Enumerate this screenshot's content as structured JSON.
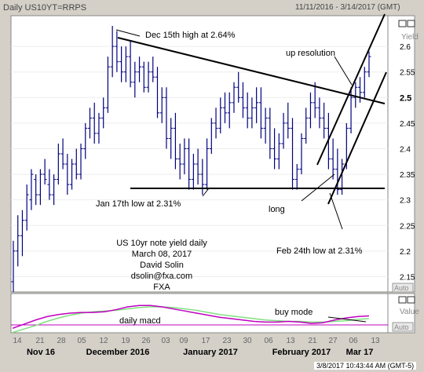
{
  "header": {
    "title": "Daily US10YT=RRPS",
    "range": "11/11/2016 - 3/14/2017 (GMT)",
    "status": "3/8/2017 10:43:44 AM  (GMT-5)"
  },
  "panels": {
    "price_label": "Yield",
    "macd_label": "Value",
    "auto_label": "Auto"
  },
  "colors": {
    "background": "#ffffff",
    "frame": "#d4d0c8",
    "bars": "#000080",
    "macd_line": "#c000c0",
    "signal_line": "#80e080",
    "zero_line": "#c000c0"
  },
  "info_block": [
    "US 10yr note yield daily",
    "March 08, 2017",
    "David Solin",
    "dsolin@fxa.com",
    "FXA"
  ],
  "annotations": [
    {
      "key": "dec15",
      "text": "Dec 15th high at 2.64%"
    },
    {
      "key": "up_res",
      "text": "up resolution"
    },
    {
      "key": "jan17",
      "text": "Jan 17th low at 2.31%"
    },
    {
      "key": "long",
      "text": "long"
    },
    {
      "key": "feb24",
      "text": "Feb 24th low at 2.31%"
    },
    {
      "key": "buy_mode",
      "text": "buy mode"
    },
    {
      "key": "daily_macd",
      "text": "daily macd"
    }
  ],
  "chart_data": {
    "type": "bar",
    "ylabel": "Yield",
    "ylim": [
      2.12,
      2.66
    ],
    "y_ticks": [
      "2.6",
      "2.55",
      "2.5",
      "2.45",
      "2.4",
      "2.35",
      "2.3",
      "2.25",
      "2.2",
      "2.15"
    ],
    "y_tick_values": [
      2.6,
      2.55,
      2.5,
      2.45,
      2.4,
      2.35,
      2.3,
      2.25,
      2.2,
      2.15
    ],
    "highlight_tick": "2.5",
    "x_ticks": [
      "14",
      "21",
      "28",
      "05",
      "12",
      "19",
      "26",
      "03",
      "09",
      "17",
      "23",
      "30",
      "06",
      "13",
      "21",
      "27",
      "06",
      "13"
    ],
    "month_labels": [
      "Nov 16",
      "December 2016",
      "January 2017",
      "February 2017",
      "Mar 17"
    ],
    "ohlc": [
      [
        2.14,
        2.22,
        2.12,
        2.2
      ],
      [
        2.2,
        2.27,
        2.17,
        2.23
      ],
      [
        2.23,
        2.28,
        2.19,
        2.26
      ],
      [
        2.26,
        2.33,
        2.24,
        2.31
      ],
      [
        2.3,
        2.36,
        2.28,
        2.35
      ],
      [
        2.34,
        2.35,
        2.29,
        2.31
      ],
      [
        2.31,
        2.36,
        2.29,
        2.35
      ],
      [
        2.35,
        2.38,
        2.33,
        2.34
      ],
      [
        2.33,
        2.36,
        2.3,
        2.31
      ],
      [
        2.31,
        2.35,
        2.29,
        2.34
      ],
      [
        2.34,
        2.41,
        2.33,
        2.39
      ],
      [
        2.39,
        2.42,
        2.36,
        2.37
      ],
      [
        2.37,
        2.39,
        2.31,
        2.33
      ],
      [
        2.33,
        2.38,
        2.32,
        2.37
      ],
      [
        2.37,
        2.4,
        2.34,
        2.35
      ],
      [
        2.35,
        2.41,
        2.34,
        2.4
      ],
      [
        2.4,
        2.45,
        2.38,
        2.44
      ],
      [
        2.44,
        2.48,
        2.42,
        2.46
      ],
      [
        2.46,
        2.49,
        2.41,
        2.43
      ],
      [
        2.43,
        2.47,
        2.41,
        2.46
      ],
      [
        2.46,
        2.5,
        2.44,
        2.48
      ],
      [
        2.48,
        2.58,
        2.47,
        2.56
      ],
      [
        2.56,
        2.64,
        2.54,
        2.6
      ],
      [
        2.6,
        2.63,
        2.55,
        2.57
      ],
      [
        2.57,
        2.6,
        2.53,
        2.55
      ],
      [
        2.55,
        2.6,
        2.53,
        2.58
      ],
      [
        2.58,
        2.61,
        2.52,
        2.53
      ],
      [
        2.53,
        2.57,
        2.5,
        2.55
      ],
      [
        2.55,
        2.58,
        2.53,
        2.56
      ],
      [
        2.56,
        2.57,
        2.51,
        2.52
      ],
      [
        2.52,
        2.57,
        2.51,
        2.55
      ],
      [
        2.55,
        2.58,
        2.53,
        2.54
      ],
      [
        2.54,
        2.56,
        2.46,
        2.47
      ],
      [
        2.47,
        2.52,
        2.45,
        2.5
      ],
      [
        2.5,
        2.52,
        2.4,
        2.42
      ],
      [
        2.42,
        2.46,
        2.38,
        2.44
      ],
      [
        2.44,
        2.47,
        2.36,
        2.38
      ],
      [
        2.38,
        2.41,
        2.34,
        2.37
      ],
      [
        2.37,
        2.42,
        2.35,
        2.4
      ],
      [
        2.4,
        2.42,
        2.32,
        2.34
      ],
      [
        2.34,
        2.39,
        2.32,
        2.37
      ],
      [
        2.37,
        2.4,
        2.33,
        2.35
      ],
      [
        2.35,
        2.38,
        2.31,
        2.33
      ],
      [
        2.33,
        2.42,
        2.32,
        2.4
      ],
      [
        2.4,
        2.46,
        2.39,
        2.45
      ],
      [
        2.45,
        2.48,
        2.42,
        2.44
      ],
      [
        2.44,
        2.5,
        2.43,
        2.48
      ],
      [
        2.48,
        2.51,
        2.45,
        2.47
      ],
      [
        2.47,
        2.51,
        2.44,
        2.49
      ],
      [
        2.49,
        2.53,
        2.47,
        2.52
      ],
      [
        2.52,
        2.55,
        2.49,
        2.5
      ],
      [
        2.5,
        2.53,
        2.46,
        2.48
      ],
      [
        2.48,
        2.51,
        2.44,
        2.46
      ],
      [
        2.46,
        2.5,
        2.44,
        2.48
      ],
      [
        2.48,
        2.52,
        2.45,
        2.49
      ],
      [
        2.49,
        2.52,
        2.42,
        2.44
      ],
      [
        2.44,
        2.48,
        2.41,
        2.46
      ],
      [
        2.46,
        2.48,
        2.38,
        2.4
      ],
      [
        2.4,
        2.44,
        2.36,
        2.38
      ],
      [
        2.38,
        2.43,
        2.36,
        2.41
      ],
      [
        2.41,
        2.47,
        2.4,
        2.45
      ],
      [
        2.45,
        2.49,
        2.42,
        2.44
      ],
      [
        2.44,
        2.46,
        2.32,
        2.34
      ],
      [
        2.34,
        2.37,
        2.32,
        2.36
      ],
      [
        2.36,
        2.43,
        2.35,
        2.42
      ],
      [
        2.42,
        2.48,
        2.41,
        2.46
      ],
      [
        2.46,
        2.51,
        2.44,
        2.49
      ],
      [
        2.49,
        2.53,
        2.46,
        2.48
      ],
      [
        2.48,
        2.5,
        2.44,
        2.46
      ],
      [
        2.46,
        2.49,
        2.42,
        2.44
      ],
      [
        2.44,
        2.47,
        2.36,
        2.38
      ],
      [
        2.38,
        2.42,
        2.34,
        2.36
      ],
      [
        2.36,
        2.4,
        2.31,
        2.32
      ],
      [
        2.32,
        2.38,
        2.31,
        2.37
      ],
      [
        2.37,
        2.45,
        2.36,
        2.44
      ],
      [
        2.44,
        2.52,
        2.43,
        2.5
      ],
      [
        2.5,
        2.53,
        2.48,
        2.52
      ],
      [
        2.52,
        2.54,
        2.49,
        2.51
      ],
      [
        2.51,
        2.56,
        2.5,
        2.55
      ],
      [
        2.55,
        2.59,
        2.54,
        2.58
      ]
    ],
    "macd": {
      "macd_line": [
        -0.14,
        -0.08,
        -0.02,
        0.03,
        0.06,
        0.08,
        0.09,
        0.09,
        0.1,
        0.13,
        0.17,
        0.19,
        0.19,
        0.17,
        0.14,
        0.11,
        0.08,
        0.05,
        0.02,
        0.0,
        -0.02,
        -0.04,
        -0.05,
        -0.05,
        -0.04,
        -0.05,
        -0.07,
        -0.06,
        -0.02,
        0.01,
        0.03,
        0.04
      ],
      "signal_line": [
        -0.2,
        -0.15,
        -0.1,
        -0.04,
        0.01,
        0.05,
        0.08,
        0.1,
        0.11,
        0.12,
        0.14,
        0.16,
        0.17,
        0.17,
        0.16,
        0.14,
        0.12,
        0.09,
        0.06,
        0.04,
        0.02,
        0.0,
        -0.02,
        -0.03,
        -0.04,
        -0.04,
        -0.05,
        -0.05,
        -0.04,
        -0.03,
        -0.01,
        0.0
      ]
    }
  }
}
